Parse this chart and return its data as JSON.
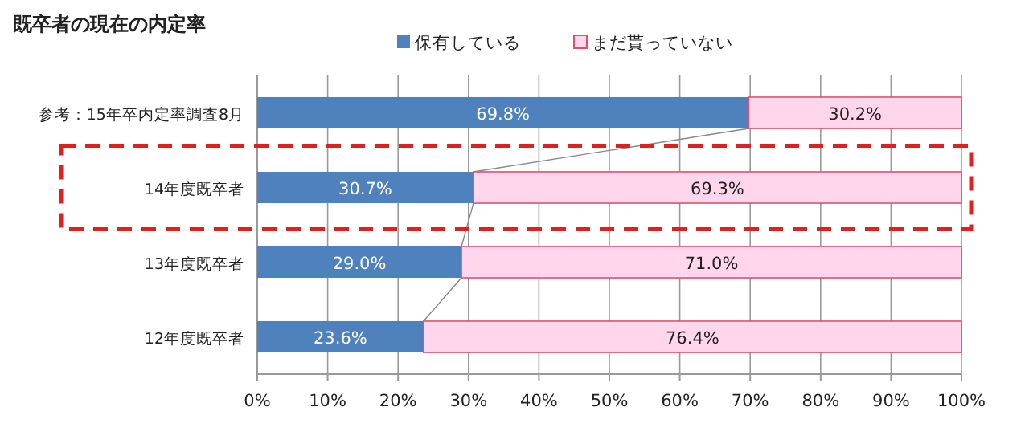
{
  "chart_data": {
    "type": "bar",
    "orientation": "horizontal",
    "stacked": true,
    "title": "既卒者の現在の内定率",
    "categories": [
      "参考：15年卒内定率調査8月",
      "14年度既卒者",
      "13年度既卒者",
      "12年度既卒者"
    ],
    "series": [
      {
        "name": "保有している",
        "color": "#4f81bd",
        "values": [
          69.8,
          30.7,
          29.0,
          23.6
        ],
        "value_labels": [
          "69.8%",
          "30.7%",
          "29.0%",
          "23.6%"
        ]
      },
      {
        "name": "まだ貰っていない",
        "color": "#ffd6ec",
        "values": [
          30.2,
          69.3,
          71.0,
          76.4
        ],
        "value_labels": [
          "30.2%",
          "69.3%",
          "71.0%",
          "76.4%"
        ]
      }
    ],
    "xlim": [
      0,
      100
    ],
    "xticks": [
      {
        "value": 0,
        "label": "0%"
      },
      {
        "value": 10,
        "label": "10%"
      },
      {
        "value": 20,
        "label": "20%"
      },
      {
        "value": 30,
        "label": "30%"
      },
      {
        "value": 40,
        "label": "40%"
      },
      {
        "value": 50,
        "label": "50%"
      },
      {
        "value": 60,
        "label": "60%"
      },
      {
        "value": 70,
        "label": "70%"
      },
      {
        "value": 80,
        "label": "80%"
      },
      {
        "value": 90,
        "label": "90%"
      },
      {
        "value": 100,
        "label": "100%"
      }
    ],
    "grid": "x",
    "legend": "top"
  }
}
